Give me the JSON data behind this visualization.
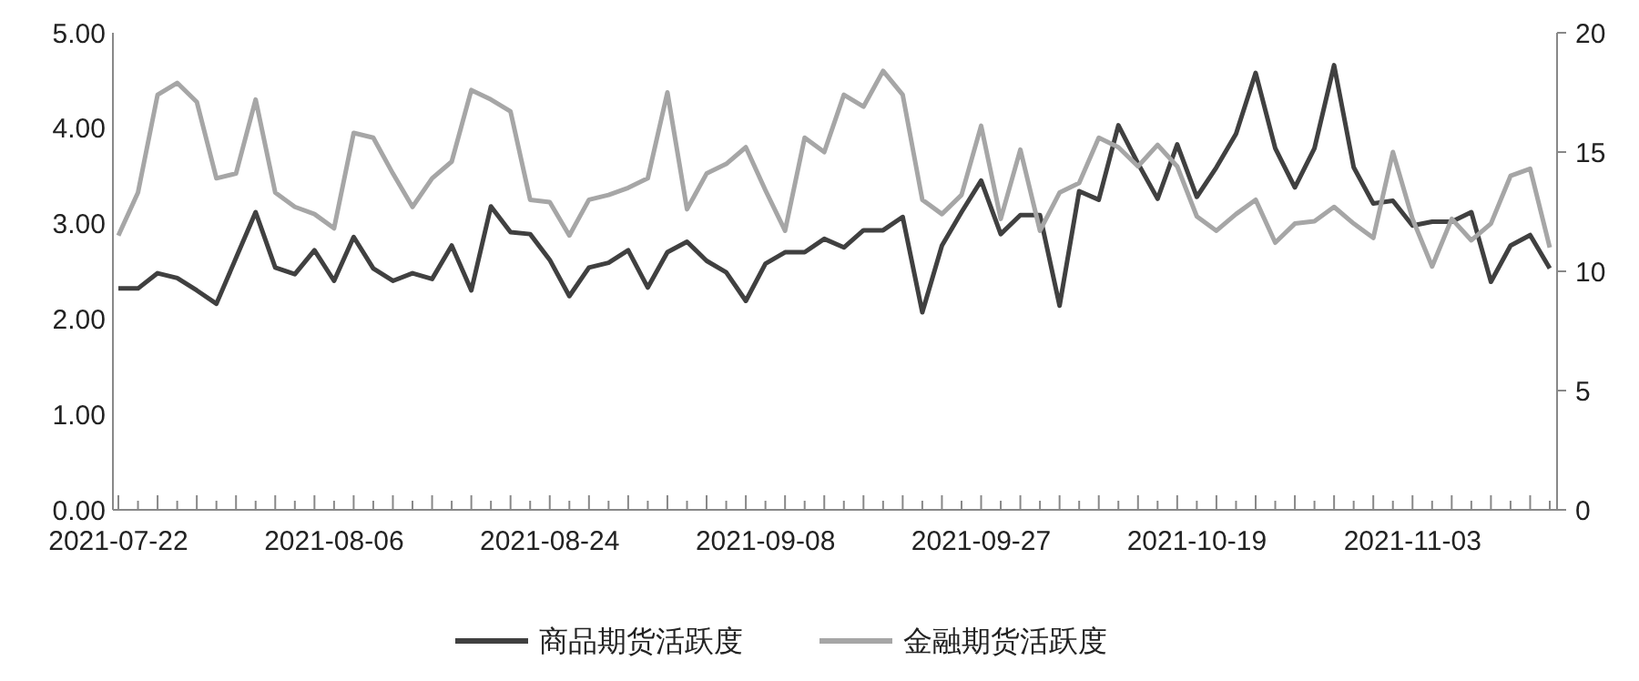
{
  "chart_data": {
    "type": "line",
    "categories": [
      "2021-07-22",
      null,
      null,
      null,
      null,
      null,
      null,
      null,
      null,
      null,
      null,
      "2021-08-06",
      null,
      null,
      null,
      null,
      null,
      null,
      null,
      null,
      null,
      null,
      "2021-08-24",
      null,
      null,
      null,
      null,
      null,
      null,
      null,
      null,
      null,
      null,
      "2021-09-08",
      null,
      null,
      null,
      null,
      null,
      null,
      null,
      null,
      null,
      null,
      "2021-09-27",
      null,
      null,
      null,
      null,
      null,
      null,
      null,
      null,
      null,
      null,
      "2021-10-19",
      null,
      null,
      null,
      null,
      null,
      null,
      null,
      null,
      null,
      null,
      "2021-11-03",
      null,
      null,
      null,
      null,
      null,
      null,
      null
    ],
    "series": [
      {
        "name": "商品期货活跃度",
        "color": "#404040",
        "values": [
          2.32,
          2.32,
          2.48,
          2.43,
          2.3,
          2.16,
          2.64,
          3.12,
          2.54,
          2.47,
          2.72,
          2.4,
          2.86,
          2.53,
          2.4,
          2.48,
          2.42,
          2.77,
          2.3,
          3.18,
          2.91,
          2.89,
          2.62,
          2.24,
          2.54,
          2.59,
          2.72,
          2.33,
          2.7,
          2.81,
          2.61,
          2.49,
          2.19,
          2.58,
          2.7,
          2.7,
          2.84,
          2.75,
          2.93,
          2.93,
          3.07,
          2.07,
          2.77,
          3.12,
          3.45,
          2.89,
          3.09,
          3.09,
          2.14,
          3.34,
          3.25,
          4.03,
          3.63,
          3.26,
          3.83,
          3.28,
          3.59,
          3.94,
          4.58,
          3.79,
          3.38,
          3.79,
          4.66,
          3.59,
          3.21,
          3.24,
          2.98,
          3.02,
          3.02,
          3.12,
          2.39,
          2.77,
          2.88,
          2.53
        ]
      },
      {
        "name": "金融期货活跃度",
        "color": "#a6a6a6",
        "axis": "y2",
        "values": [
          11.5,
          13.3,
          17.4,
          17.9,
          17.1,
          13.9,
          14.1,
          17.2,
          13.3,
          12.7,
          12.4,
          11.8,
          15.8,
          15.6,
          14.1,
          12.7,
          13.9,
          14.6,
          17.6,
          17.2,
          16.7,
          13.0,
          12.9,
          11.5,
          13.0,
          13.2,
          13.5,
          13.9,
          17.5,
          12.6,
          14.1,
          14.5,
          15.2,
          13.4,
          11.7,
          15.6,
          15.0,
          17.4,
          16.9,
          18.4,
          17.4,
          13.0,
          12.4,
          13.2,
          16.1,
          12.2,
          15.1,
          11.7,
          13.3,
          13.7,
          15.6,
          15.2,
          14.4,
          15.3,
          14.4,
          12.3,
          11.7,
          12.4,
          13.0,
          11.2,
          12.0,
          12.1,
          12.7,
          12.0,
          11.4,
          15.0,
          12.2,
          10.2,
          12.2,
          11.3,
          12.0,
          14.0,
          14.3,
          11.0
        ]
      }
    ],
    "ylim": [
      0,
      5
    ],
    "yticks": [
      {
        "value": 0,
        "label": "0.00"
      },
      {
        "value": 1,
        "label": "1.00"
      },
      {
        "value": 2,
        "label": "2.00"
      },
      {
        "value": 3,
        "label": "3.00"
      },
      {
        "value": 4,
        "label": "4.00"
      },
      {
        "value": 5,
        "label": "5.00"
      }
    ],
    "y2lim": [
      0,
      20
    ],
    "y2ticks": [
      0,
      5,
      10,
      15,
      20
    ],
    "legend": "bottom",
    "marker": "none",
    "line_style": "solid"
  }
}
